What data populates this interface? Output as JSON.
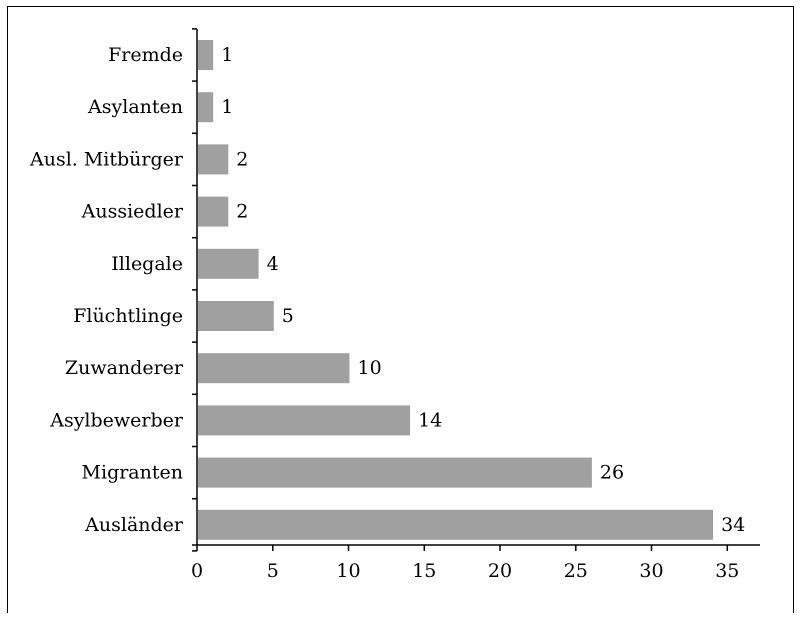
{
  "chart_data": {
    "type": "bar",
    "orientation": "horizontal",
    "categories": [
      "Fremde",
      "Asylanten",
      "Ausl. Mitbürger",
      "Aussiedler",
      "Illegale",
      "Flüchtlinge",
      "Zuwanderer",
      "Asylbewerber",
      "Migranten",
      "Ausländer"
    ],
    "values": [
      1,
      1,
      2,
      2,
      4,
      5,
      10,
      14,
      26,
      34
    ],
    "data_labels": [
      "1",
      "1",
      "2",
      "2",
      "4",
      "5",
      "10",
      "14",
      "26",
      "34"
    ],
    "title": "",
    "xlabel": "",
    "ylabel": "",
    "xlim": [
      0,
      37
    ],
    "xticks": [
      0,
      5,
      10,
      15,
      20,
      25,
      30,
      35
    ],
    "xtick_labels": [
      "0",
      "5",
      "10",
      "15",
      "20",
      "25",
      "30",
      "35"
    ],
    "grid": false,
    "legend": "none",
    "bar_color": "#a0a0a0",
    "axis_color": "#000000"
  }
}
